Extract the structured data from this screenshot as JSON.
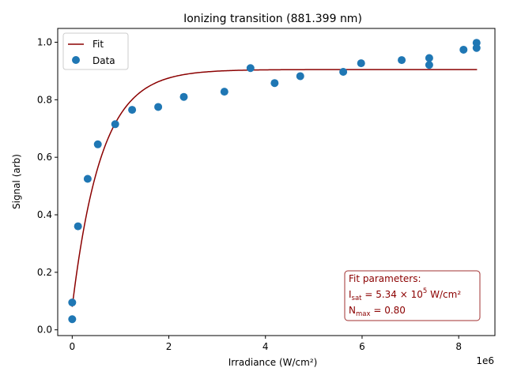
{
  "chart_data": {
    "type": "scatter",
    "title": "Ionizing transition (881.399 nm)",
    "xlabel": "Irradiance (W/cm²)",
    "ylabel": "Signal (arb)",
    "x_offset_label": "1e6",
    "xlim": [
      -300000,
      8750000
    ],
    "ylim": [
      -0.02,
      1.048
    ],
    "x_ticks": [
      0,
      2000000,
      4000000,
      6000000,
      8000000
    ],
    "x_tick_labels": [
      "0",
      "2",
      "4",
      "6",
      "8"
    ],
    "y_ticks": [
      0.0,
      0.2,
      0.4,
      0.6,
      0.8,
      1.0
    ],
    "y_tick_labels": [
      "0.0",
      "0.2",
      "0.4",
      "0.6",
      "0.8",
      "1.0"
    ],
    "grid": false,
    "legend_position": "top-left",
    "series": [
      {
        "name": "Fit",
        "kind": "line",
        "color": "#8b0000",
        "model": "saturation",
        "x_range": [
          0,
          8380000
        ],
        "y0": 0.08,
        "ymax": 0.905,
        "scale": 600000
      },
      {
        "name": "Data",
        "kind": "scatter",
        "color": "#1f77b4",
        "points": [
          {
            "x": 0,
            "y": 0.095
          },
          {
            "x": 0,
            "y": 0.037
          },
          {
            "x": 120000,
            "y": 0.36
          },
          {
            "x": 320000,
            "y": 0.525
          },
          {
            "x": 530000,
            "y": 0.645
          },
          {
            "x": 890000,
            "y": 0.715
          },
          {
            "x": 1240000,
            "y": 0.765
          },
          {
            "x": 1780000,
            "y": 0.775
          },
          {
            "x": 2310000,
            "y": 0.81
          },
          {
            "x": 3150000,
            "y": 0.828
          },
          {
            "x": 3690000,
            "y": 0.91
          },
          {
            "x": 4190000,
            "y": 0.858
          },
          {
            "x": 4720000,
            "y": 0.882
          },
          {
            "x": 5610000,
            "y": 0.897
          },
          {
            "x": 5980000,
            "y": 0.927
          },
          {
            "x": 6820000,
            "y": 0.938
          },
          {
            "x": 7390000,
            "y": 0.945
          },
          {
            "x": 7390000,
            "y": 0.921
          },
          {
            "x": 8100000,
            "y": 0.974
          },
          {
            "x": 8370000,
            "y": 0.998
          },
          {
            "x": 8370000,
            "y": 0.98
          }
        ]
      }
    ],
    "annotation": {
      "color": "#8b0000",
      "heading": "Fit parameters:",
      "isat_symbol": "I",
      "isat_sub": "sat",
      "isat_value": " = 5.34 × 10",
      "isat_exp": "5",
      "isat_unit": " W/cm²",
      "nmax_symbol": "N",
      "nmax_sub": "max",
      "nmax_value": " = 0.80"
    }
  }
}
